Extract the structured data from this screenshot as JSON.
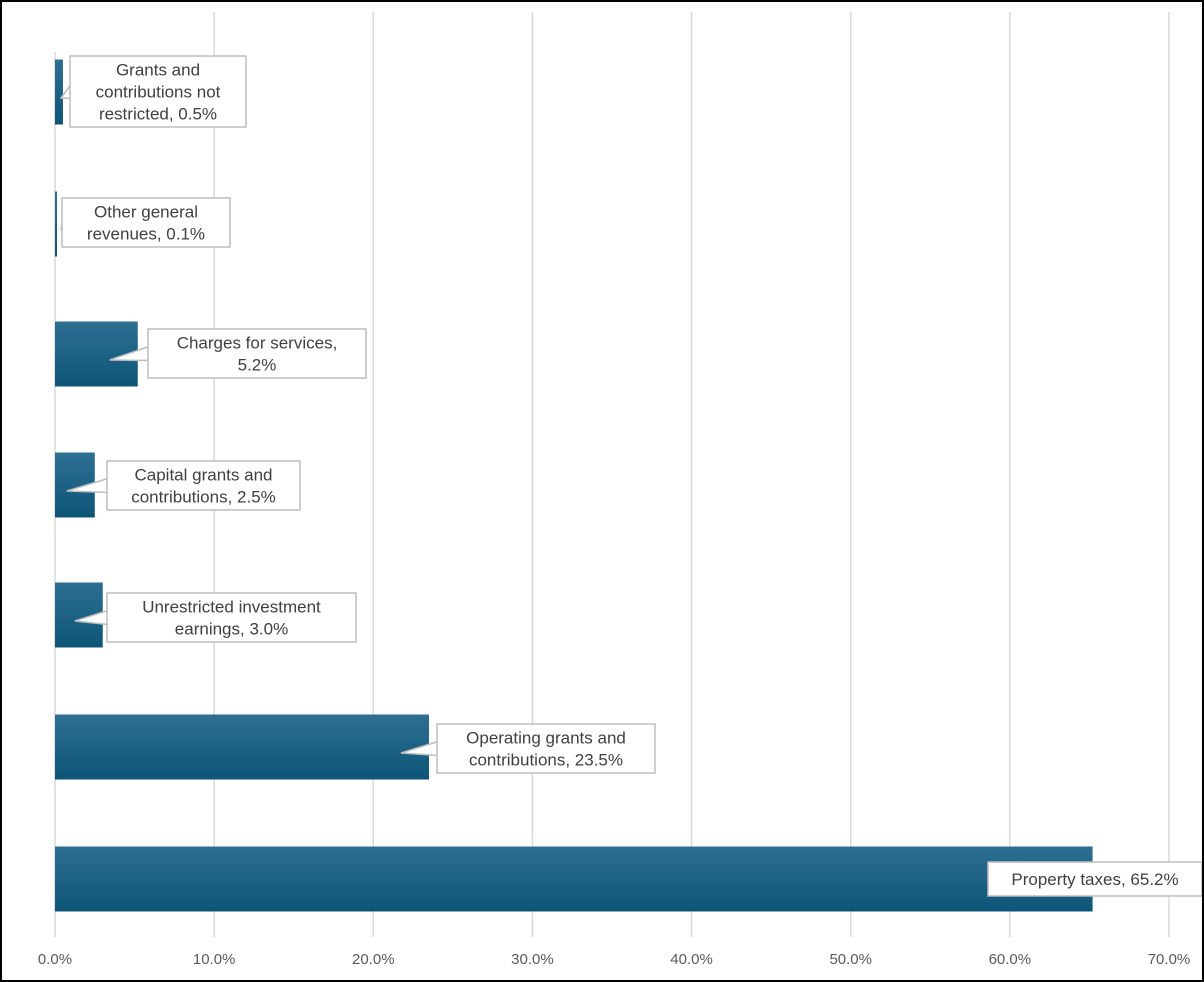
{
  "chart_data": {
    "type": "bar",
    "orientation": "horizontal",
    "categories": [
      "Grants and contributions not restricted",
      "Other general revenues",
      "Charges for services",
      "Capital grants and contributions",
      "Unrestricted investment earnings",
      "Operating grants and contributions",
      "Property taxes"
    ],
    "values": [
      0.5,
      0.1,
      5.2,
      2.5,
      3.0,
      23.5,
      65.2
    ],
    "data_labels": [
      [
        "Grants and",
        "contributions not",
        "restricted, 0.5%"
      ],
      [
        "Other general",
        "revenues, 0.1%"
      ],
      [
        "Charges for services,",
        "5.2%"
      ],
      [
        "Capital grants and",
        "contributions, 2.5%"
      ],
      [
        "Unrestricted investment",
        "earnings, 3.0%"
      ],
      [
        "Operating grants and",
        "contributions, 23.5%"
      ],
      [
        "Property taxes, 65.2%"
      ]
    ],
    "x_ticks": [
      "0.0%",
      "10.0%",
      "20.0%",
      "30.0%",
      "40.0%",
      "50.0%",
      "60.0%",
      "70.0%"
    ],
    "xlim": [
      0,
      70
    ],
    "title": "",
    "xlabel": "",
    "ylabel": "",
    "grid": "vertical",
    "legend": "none",
    "colors": {
      "bar_top": "#2e6f92",
      "bar_bottom": "#0d5577",
      "gridline": "#d9d9d9",
      "tick_text": "#5a5a5a",
      "callout_border": "#bdbdbd",
      "callout_text": "#404040",
      "frame": "#000000"
    }
  }
}
